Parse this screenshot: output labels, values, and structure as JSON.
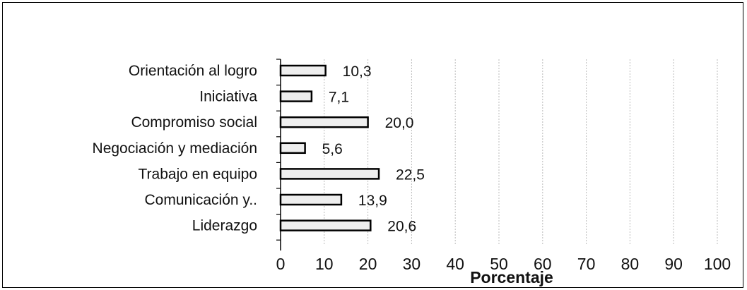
{
  "chart_data": {
    "type": "bar",
    "orientation": "horizontal",
    "categories": [
      "Orientación al logro",
      "Iniciativa",
      "Compromiso social",
      "Negociación y mediación",
      "Trabajo en equipo",
      "Comunicación y..",
      "Liderazgo"
    ],
    "values": [
      10.3,
      7.1,
      20.0,
      5.6,
      22.5,
      13.9,
      20.6
    ],
    "value_labels": [
      "10,3",
      "7,1",
      "20,0",
      "5,6",
      "22,5",
      "13,9",
      "20,6"
    ],
    "xlabel": "Porcentaje",
    "xlim": [
      0,
      100
    ],
    "xticks": [
      "0",
      "10",
      "20",
      "30",
      "40",
      "50",
      "60",
      "70",
      "80",
      "90",
      "100"
    ],
    "grid": "vertical dotted",
    "colors": {
      "bar_fill": "#eeeeee",
      "bar_stroke": "#000000",
      "grid": "#bbbbbb"
    }
  }
}
